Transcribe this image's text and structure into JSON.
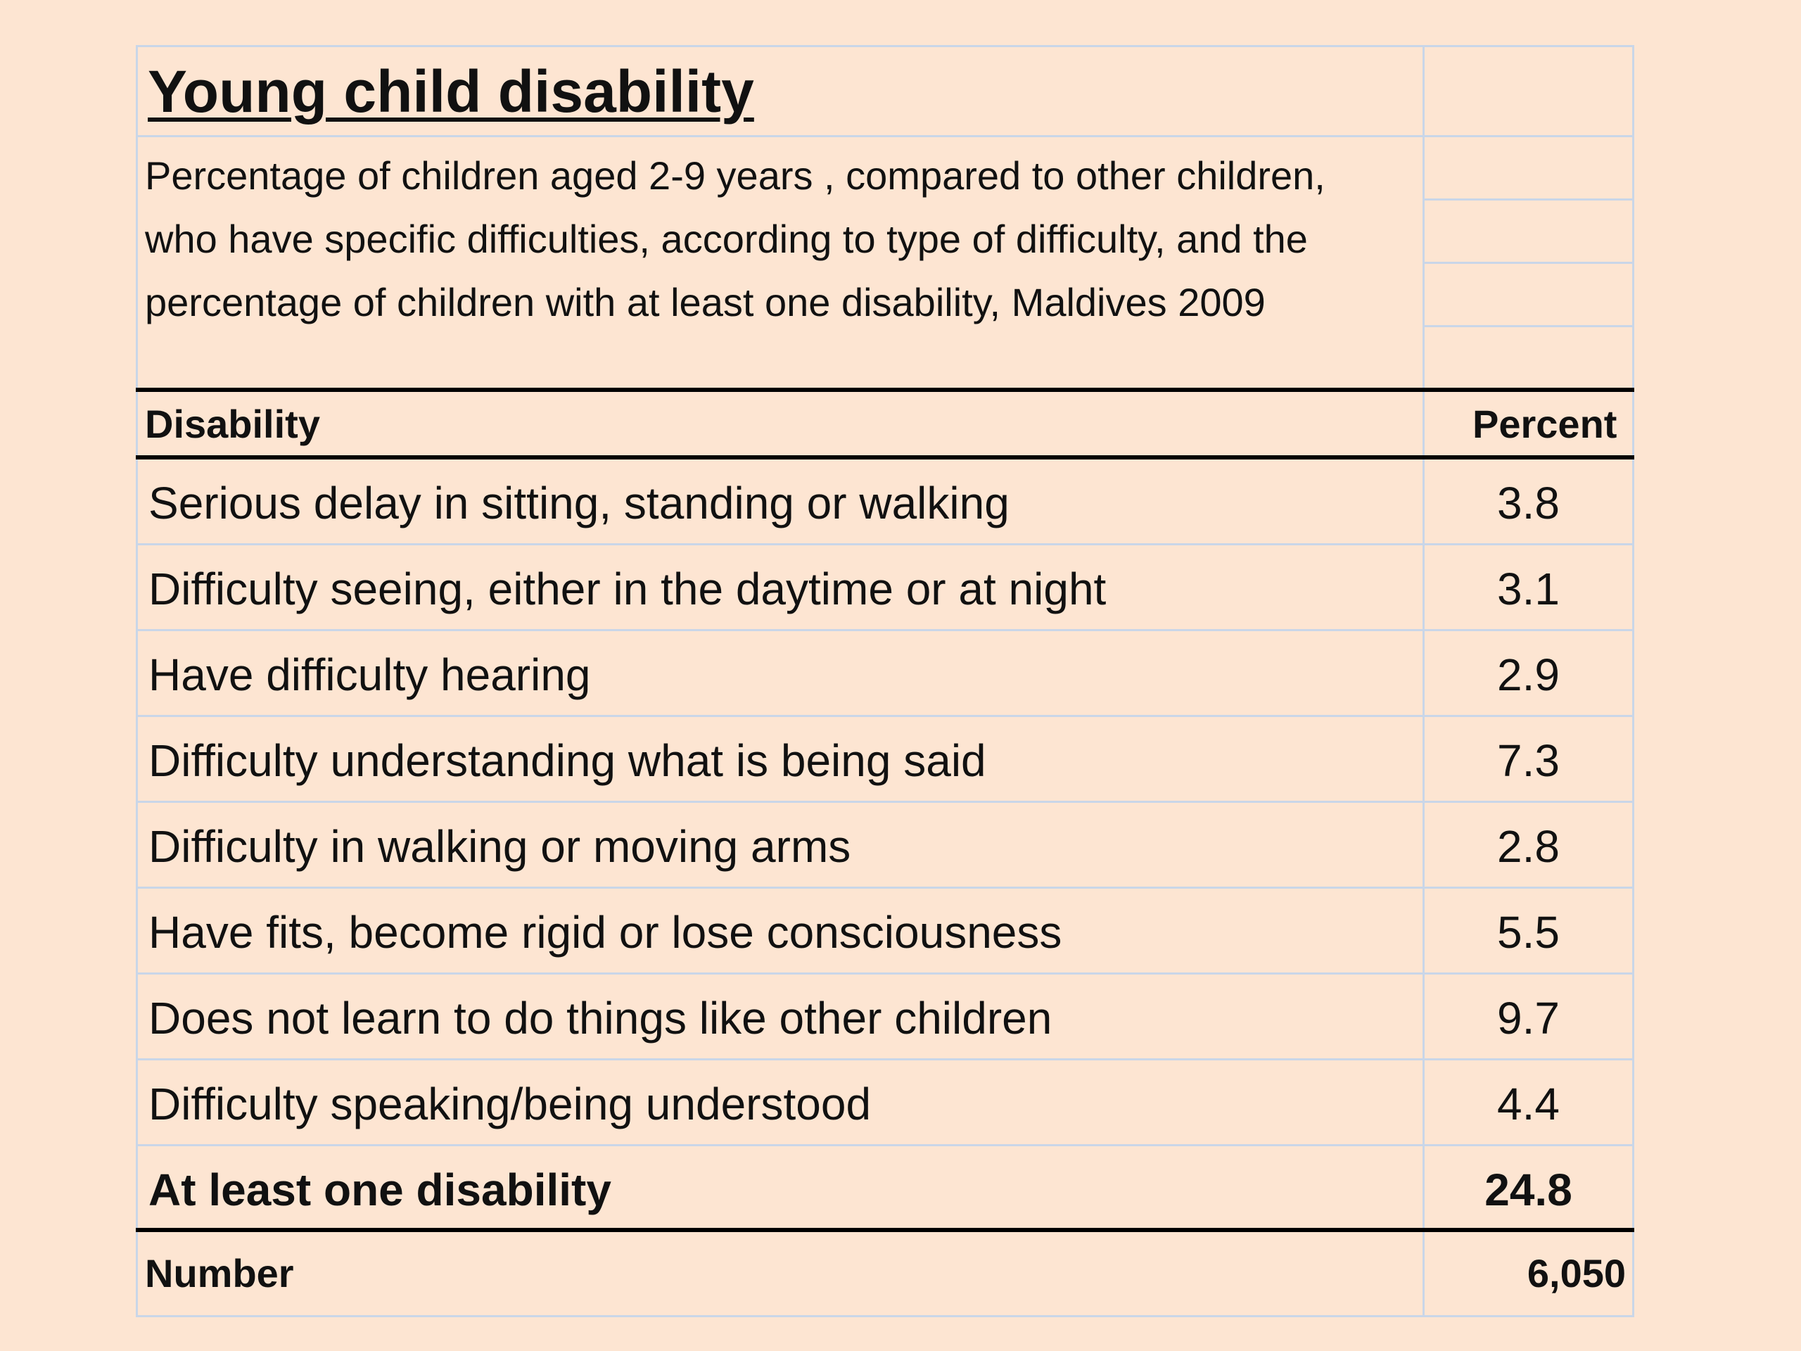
{
  "chart_data": {
    "type": "table",
    "title": "Young child disability",
    "subtitle": "Percentage of children aged 2-9 years , compared to other children, who have specific difficulties, according to type of difficulty, and the percentage of children  with at least one disability, Maldives 2009",
    "columns": [
      "Disability",
      "Percent"
    ],
    "rows": [
      {
        "label": "Serious delay in sitting, standing or walking",
        "value": "3.8"
      },
      {
        "label": "Difficulty seeing, either in the daytime or at night",
        "value": "3.1"
      },
      {
        "label": "Have difficulty hearing",
        "value": "2.9"
      },
      {
        "label": "Difficulty understanding what is being said",
        "value": "7.3"
      },
      {
        "label": "Difficulty in walking or moving arms",
        "value": "2.8"
      },
      {
        "label": "Have fits, become rigid or lose consciousness",
        "value": "5.5"
      },
      {
        "label": "Does not learn to do things like other children",
        "value": "9.7"
      },
      {
        "label": "Difficulty speaking/being understood",
        "value": "4.4"
      }
    ],
    "total": {
      "label": "At least one disability",
      "value": "24.8"
    },
    "number": {
      "label": "Number",
      "value": "6,050"
    }
  }
}
